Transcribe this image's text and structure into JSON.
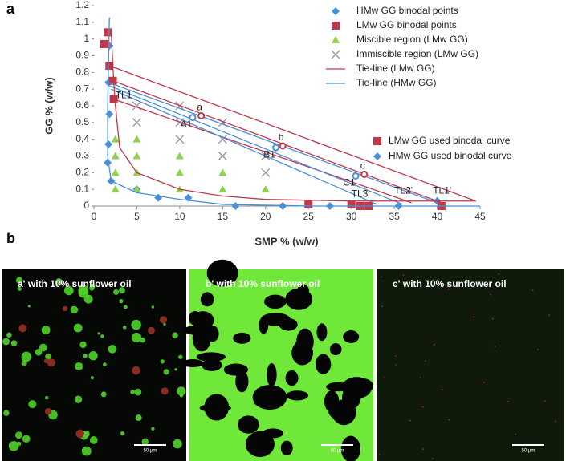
{
  "panel_labels": [
    "a",
    "b"
  ],
  "chart_data": {
    "type": "scatter",
    "x_label": "SMP %  (w/w)",
    "y_label": "GG % (w/w)",
    "xlim": [
      0,
      45
    ],
    "xticks": [
      0,
      5,
      10,
      15,
      20,
      25,
      30,
      35,
      40,
      45
    ],
    "ylim": [
      0,
      1.2
    ],
    "yticks": [
      0,
      0.1,
      0.2,
      0.3,
      0.4,
      0.5,
      0.6,
      0.7,
      0.8,
      0.9,
      1,
      1.1,
      1.2
    ],
    "series": [
      {
        "name": "HMw GG binodal points",
        "color": "#4a90d9",
        "mode": "markers",
        "marker": "diamond",
        "legend_group": 1,
        "x": [
          1.8,
          1.7,
          1.8,
          1.7,
          1.6,
          2,
          5,
          7.5,
          11,
          16.5,
          22,
          27.5,
          35.5,
          40
        ],
        "y": [
          0.96,
          0.74,
          0.55,
          0.37,
          0.26,
          0.15,
          0.1,
          0.05,
          0.05,
          0,
          0,
          0,
          0,
          0.03
        ]
      },
      {
        "name": "LMw GG binodal points",
        "color": "#c0394b",
        "mode": "markers",
        "marker": "square",
        "legend_group": 1,
        "x": [
          1.2,
          1.6,
          1.8,
          2.2,
          2.3,
          25,
          30,
          31,
          32,
          40.5
        ],
        "y": [
          0.97,
          1.04,
          0.84,
          0.75,
          0.64,
          0.01,
          0.01,
          0,
          0,
          0
        ]
      },
      {
        "name": "Miscible region (LMw GG)",
        "color": "#92d050",
        "mode": "markers",
        "marker": "triangle",
        "legend_group": 1,
        "x": [
          2.5,
          2.5,
          2.5,
          2.5,
          5,
          5,
          5,
          5,
          10,
          10,
          10,
          15,
          15,
          20
        ],
        "y": [
          0.4,
          0.3,
          0.2,
          0.1,
          0.4,
          0.3,
          0.2,
          0.1,
          0.3,
          0.2,
          0.1,
          0.2,
          0.1,
          0.1
        ]
      },
      {
        "name": "Immiscible region (LMw GG)",
        "color": "#9a8ea8",
        "mode": "markers",
        "marker": "x",
        "legend_group": 1,
        "x": [
          5,
          10,
          5,
          10,
          15,
          10,
          15,
          20,
          15,
          20,
          20
        ],
        "y": [
          0.6,
          0.6,
          0.5,
          0.5,
          0.5,
          0.4,
          0.4,
          0.3,
          0.3,
          0.2,
          0.3
        ]
      },
      {
        "name": "Tie-line (LMw GG)",
        "color": "#c0394b",
        "mode": "line",
        "legend_group": 1,
        "x": [
          1.8,
          44.5,
          null,
          2.2,
          40.5,
          null,
          2.3,
          37
        ],
        "y": [
          0.84,
          0.03,
          null,
          0.75,
          0.02,
          null,
          0.64,
          0.02
        ]
      },
      {
        "name": "Tie-line (HMw GG)",
        "color": "#4a90d9",
        "mode": "line",
        "legend_group": 1,
        "x": [
          1.7,
          40,
          null,
          1.8,
          36,
          null,
          2,
          33
        ],
        "y": [
          0.74,
          0.02,
          null,
          0.72,
          0.01,
          null,
          0.7,
          0.01
        ]
      },
      {
        "name": "LMw GG used binodal curve",
        "color": "#c0394b",
        "mode": "line",
        "marker": "square",
        "legend_group": 2,
        "x": [
          2,
          2.3,
          2.5,
          3,
          5,
          10,
          15,
          20,
          30,
          44.5
        ],
        "y": [
          1.05,
          0.75,
          0.6,
          0.35,
          0.2,
          0.1,
          0.06,
          0.04,
          0.03,
          0.03
        ]
      },
      {
        "name": "HMw GG used binodal curve",
        "color": "#4a90d9",
        "mode": "line",
        "marker": "diamond",
        "legend_group": 2,
        "x": [
          1.8,
          1.6,
          1.6,
          2,
          5,
          10,
          15,
          25,
          45
        ],
        "y": [
          1.13,
          0.6,
          0.3,
          0.15,
          0.08,
          0.04,
          0.01,
          0,
          0
        ]
      }
    ],
    "points": [
      {
        "label": "a",
        "x": 12.5,
        "y": 0.54,
        "color": "#c0394b"
      },
      {
        "label": "A1",
        "x": 11.5,
        "y": 0.53,
        "color": "#4a90d9"
      },
      {
        "label": "b",
        "x": 22,
        "y": 0.36,
        "color": "#c0394b"
      },
      {
        "label": "B1",
        "x": 21.2,
        "y": 0.35,
        "color": "#4a90d9"
      },
      {
        "label": "c",
        "x": 31.5,
        "y": 0.19,
        "color": "#c0394b"
      },
      {
        "label": "C1",
        "x": 30.5,
        "y": 0.18,
        "color": "#4a90d9"
      }
    ],
    "line_labels": [
      {
        "label": "TL1",
        "x": 2.5,
        "y": 0.66
      },
      {
        "label": "TL3'",
        "x": 30,
        "y": 0.07
      },
      {
        "label": "TL2'",
        "x": 35,
        "y": 0.09
      },
      {
        "label": "TL1'",
        "x": 39.5,
        "y": 0.09
      }
    ]
  },
  "micrographs": [
    {
      "caption": "a' with 10% sunflower oil",
      "scale_bar": "50 μm"
    },
    {
      "caption": "b' with 10% sunflower oil",
      "scale_bar": "50 μm"
    },
    {
      "caption": "c' with 10% sunflower oil",
      "scale_bar": "50 μm"
    }
  ]
}
